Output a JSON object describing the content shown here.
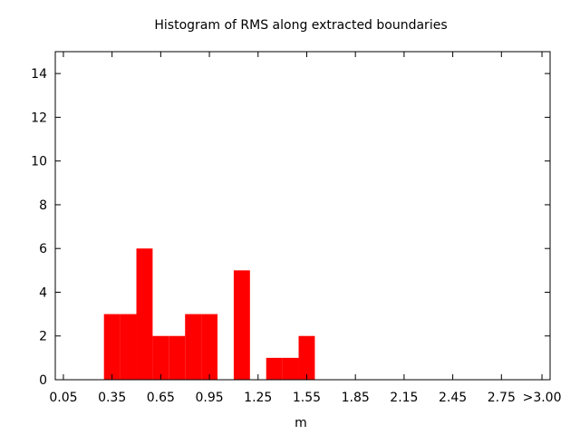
{
  "chart_data": {
    "type": "bar",
    "title": "Histogram of RMS along extracted boundaries",
    "xlabel": "m",
    "ylabel": "",
    "bin_width": 0.1,
    "xlim": [
      0.0,
      3.05
    ],
    "ylim": [
      0,
      15
    ],
    "x_tick_values": [
      0.05,
      0.35,
      0.65,
      0.95,
      1.25,
      1.55,
      1.85,
      2.15,
      2.45,
      2.75,
      3.0
    ],
    "x_tick_labels": [
      "0.05",
      "0.35",
      "0.65",
      "0.95",
      "1.25",
      "1.55",
      "1.85",
      "2.15",
      "2.45",
      "2.75",
      ">3.00"
    ],
    "y_ticks": [
      0,
      2,
      4,
      6,
      8,
      10,
      12,
      14
    ],
    "grid": false,
    "bar_color": "#ff0000",
    "bin_centers": [
      0.05,
      0.15,
      0.25,
      0.35,
      0.45,
      0.55,
      0.65,
      0.75,
      0.85,
      0.95,
      1.05,
      1.15,
      1.25,
      1.35,
      1.45,
      1.55,
      1.65,
      1.75,
      1.85,
      1.95,
      2.05,
      2.15,
      2.25,
      2.35,
      2.45,
      2.55,
      2.65,
      2.75,
      2.85,
      3.0
    ],
    "values": [
      0,
      0,
      0,
      3,
      3,
      6,
      2,
      2,
      3,
      3,
      0,
      5,
      0,
      1,
      1,
      2,
      0,
      0,
      0,
      0,
      0,
      0,
      0,
      0,
      0,
      0,
      0,
      0,
      0,
      0
    ]
  }
}
